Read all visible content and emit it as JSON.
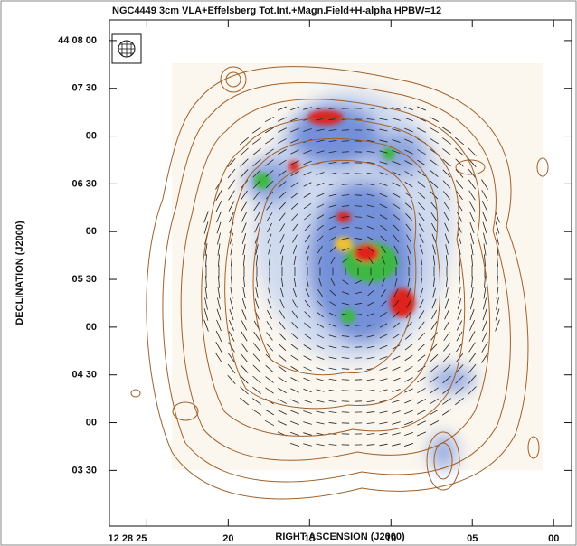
{
  "chart_data": {
    "type": "image",
    "title": "NGC4449  3cm  VLA+Effelsberg  Tot.Int.+Magn.Field+H-alpha  HPBW=12",
    "x_label": "RIGHT ASCENSION (J2000)",
    "y_label": "DECLINATION (J2000)",
    "xlim": [
      27.3,
      -1.1
    ],
    "xticks": [
      {
        "value": 25,
        "label": "12 28 25"
      },
      20,
      15,
      10,
      {
        "value": 5,
        "label": "05"
      },
      {
        "value": 0,
        "label": "00"
      }
    ],
    "ylim": [
      175,
      493
    ],
    "yticks": [
      {
        "value": 480,
        "label": "44 08 00"
      },
      {
        "value": 450,
        "label": "07 30"
      },
      {
        "value": 420,
        "label": "00"
      },
      {
        "value": 390,
        "label": "06 30"
      },
      {
        "value": 360,
        "label": "00"
      },
      {
        "value": 330,
        "label": "05 30"
      },
      {
        "value": 300,
        "label": "00"
      },
      {
        "value": 270,
        "label": "04 30"
      },
      {
        "value": 240,
        "label": "00"
      },
      {
        "value": 210,
        "label": "03 30"
      }
    ]
  }
}
